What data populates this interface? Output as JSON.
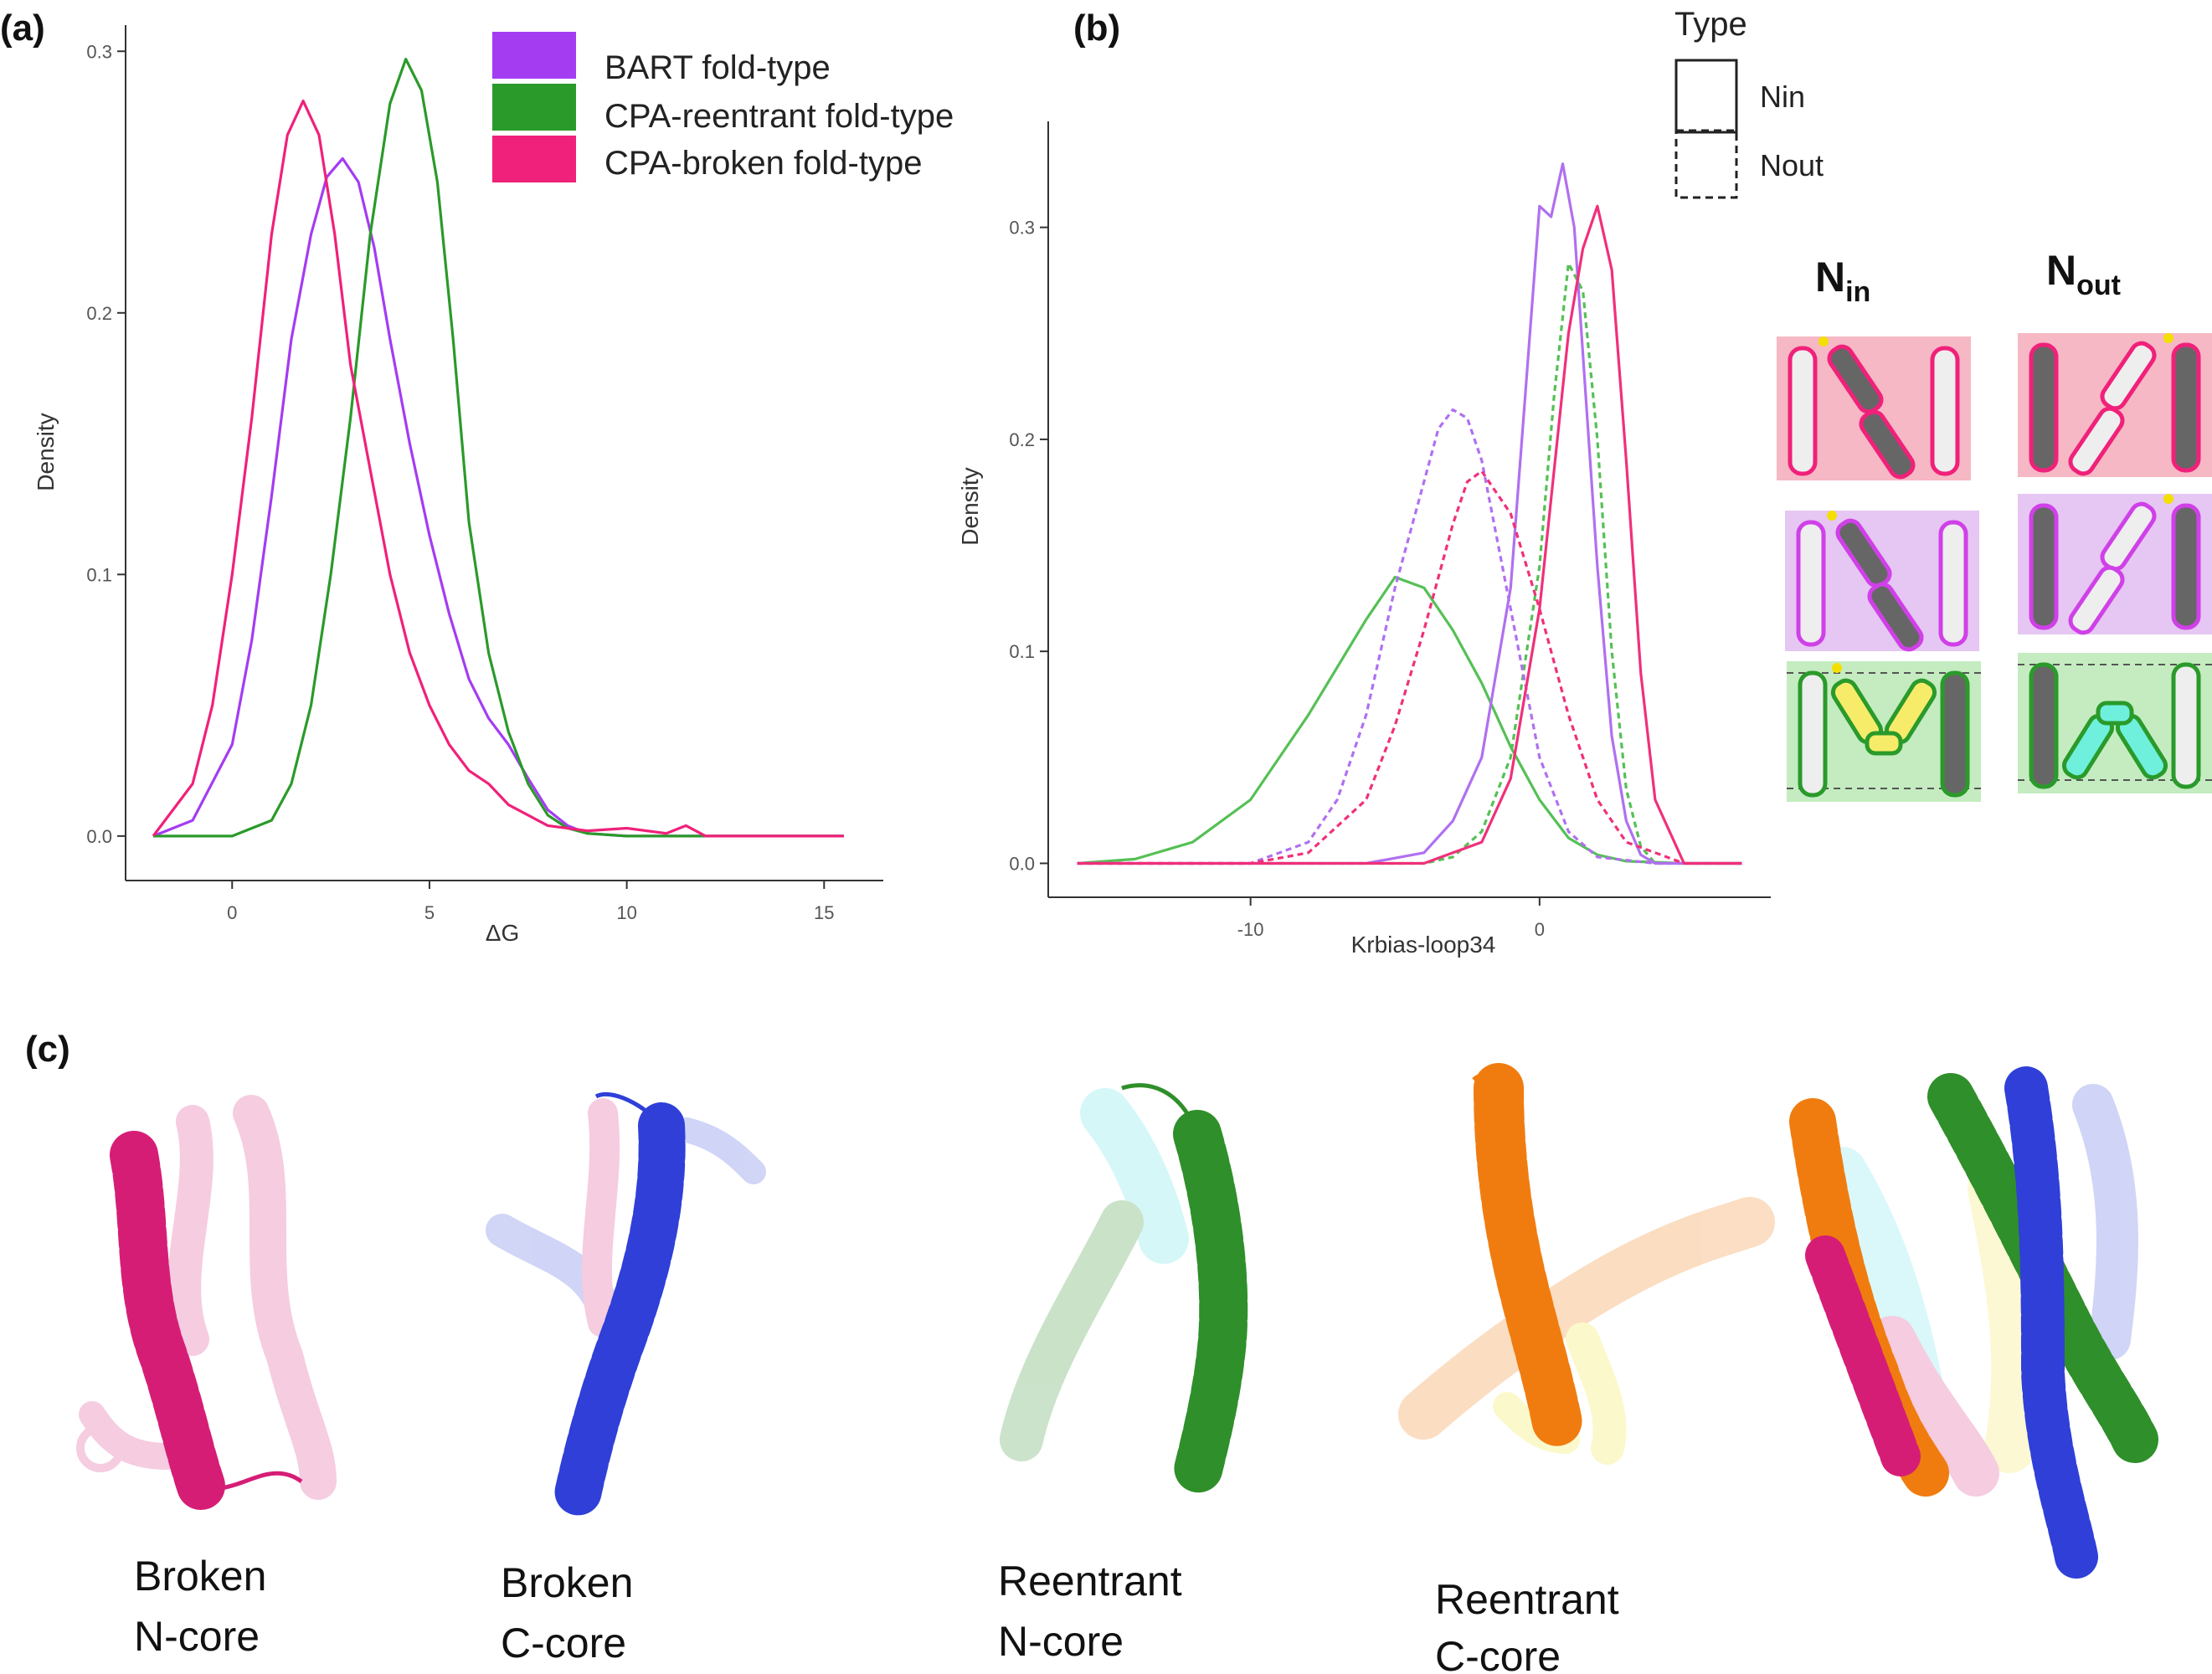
{
  "labels": {
    "panel_a": "(a)",
    "panel_b": "(b)",
    "panel_c": "(c)"
  },
  "chart_data": [
    {
      "type": "line",
      "panel": "(a)",
      "title": "",
      "xlabel": "ΔG",
      "ylabel": "Density",
      "xlim": [
        -2.7,
        16.5
      ],
      "ylim": [
        -0.017,
        0.31
      ],
      "x_ticks": [
        0,
        5,
        10,
        15
      ],
      "y_ticks": [
        0.0,
        0.1,
        0.2,
        0.3
      ],
      "x_tick_labels": [
        "0",
        "5",
        "10",
        "15"
      ],
      "y_tick_labels": [
        "0.0",
        "0.1",
        "0.2",
        "0.3"
      ],
      "grid": false,
      "legend_position": "top-right",
      "series": [
        {
          "name": "BART fold-type",
          "color": "#a43cf2",
          "x": [
            -2.0,
            -1.0,
            0.0,
            0.5,
            1.0,
            1.5,
            2.0,
            2.4,
            2.8,
            3.2,
            3.6,
            4.0,
            4.5,
            5.0,
            5.5,
            6.0,
            6.5,
            7.0,
            7.5,
            8.0,
            8.5,
            9.0,
            10.0,
            12.0,
            15.5
          ],
          "y": [
            0.0,
            0.006,
            0.035,
            0.075,
            0.13,
            0.19,
            0.23,
            0.252,
            0.259,
            0.25,
            0.225,
            0.19,
            0.15,
            0.115,
            0.085,
            0.06,
            0.045,
            0.035,
            0.022,
            0.01,
            0.004,
            0.001,
            0.0,
            0.0,
            0.0
          ]
        },
        {
          "name": "CPA-reentrant fold-type",
          "color": "#2a9a2a",
          "x": [
            -2.0,
            0.0,
            1.0,
            1.5,
            2.0,
            2.5,
            3.0,
            3.5,
            4.0,
            4.4,
            4.8,
            5.2,
            5.6,
            6.0,
            6.5,
            7.0,
            7.5,
            8.0,
            8.5,
            9.0,
            10.0,
            12.0,
            15.5
          ],
          "y": [
            0.0,
            0.0,
            0.006,
            0.02,
            0.05,
            0.1,
            0.16,
            0.23,
            0.28,
            0.297,
            0.285,
            0.25,
            0.19,
            0.12,
            0.07,
            0.04,
            0.02,
            0.008,
            0.003,
            0.001,
            0.0,
            0.0,
            0.0
          ]
        },
        {
          "name": "CPA-broken fold-type",
          "color": "#f0217a",
          "x": [
            -2.0,
            -1.0,
            -0.5,
            0.0,
            0.5,
            1.0,
            1.4,
            1.8,
            2.2,
            2.6,
            3.0,
            3.5,
            4.0,
            4.5,
            5.0,
            5.5,
            6.0,
            6.5,
            7.0,
            7.5,
            8.0,
            8.5,
            9.0,
            10.0,
            11.0,
            11.5,
            12.0,
            15.5
          ],
          "y": [
            0.0,
            0.02,
            0.05,
            0.1,
            0.16,
            0.23,
            0.268,
            0.281,
            0.268,
            0.23,
            0.18,
            0.14,
            0.1,
            0.07,
            0.05,
            0.035,
            0.025,
            0.02,
            0.012,
            0.008,
            0.004,
            0.003,
            0.002,
            0.003,
            0.001,
            0.004,
            0.0,
            0.0
          ]
        }
      ]
    },
    {
      "type": "line",
      "panel": "(b)",
      "title": "",
      "xlabel": "Krbias-loop34",
      "ylabel": "Density",
      "xlim": [
        -17,
        8
      ],
      "ylim": [
        -0.016,
        0.35
      ],
      "x_ticks": [
        -10,
        0
      ],
      "y_ticks": [
        0.0,
        0.1,
        0.2,
        0.3
      ],
      "x_tick_labels": [
        "-10",
        "0"
      ],
      "y_tick_labels": [
        "0.0",
        "0.1",
        "0.2",
        "0.3"
      ],
      "grid": false,
      "legend_position": "top-right",
      "legend_title": "Type",
      "linetype_legend": [
        {
          "name": "Nin",
          "dash": "solid"
        },
        {
          "name": "Nout",
          "dash": "dashed"
        }
      ],
      "series": [
        {
          "name": "",
          "fold": "CPA-reentrant",
          "linetype": "Nin",
          "color": "#55c055",
          "x": [
            -16,
            -14,
            -12,
            -10,
            -8,
            -6,
            -5,
            -4,
            -3,
            -2,
            -1,
            0,
            1,
            2,
            3,
            5,
            7
          ],
          "y": [
            0.0,
            0.002,
            0.01,
            0.03,
            0.07,
            0.115,
            0.135,
            0.13,
            0.11,
            0.085,
            0.055,
            0.03,
            0.012,
            0.004,
            0.001,
            0.0,
            0.0
          ]
        },
        {
          "name": "",
          "fold": "CPA-reentrant",
          "linetype": "Nout",
          "color": "#55c055",
          "x": [
            -16,
            -4,
            -3,
            -2,
            -1,
            0,
            0.5,
            1.0,
            1.5,
            2.0,
            2.5,
            3.0,
            3.5,
            4.0,
            7
          ],
          "y": [
            0.0,
            0.0,
            0.003,
            0.015,
            0.05,
            0.14,
            0.22,
            0.283,
            0.27,
            0.2,
            0.1,
            0.035,
            0.008,
            0.0,
            0.0
          ]
        },
        {
          "name": "",
          "fold": "BART",
          "linetype": "Nin",
          "color": "#b070f0",
          "x": [
            -16,
            -6,
            -4,
            -3,
            -2,
            -1,
            -0.5,
            0.0,
            0.4,
            0.8,
            1.2,
            1.6,
            2.0,
            2.5,
            3.0,
            3.5,
            4.0,
            7
          ],
          "y": [
            0.0,
            0.0,
            0.005,
            0.02,
            0.05,
            0.13,
            0.22,
            0.31,
            0.305,
            0.33,
            0.3,
            0.22,
            0.14,
            0.06,
            0.02,
            0.004,
            0.0,
            0.0
          ]
        },
        {
          "name": "",
          "fold": "BART",
          "linetype": "Nout",
          "color": "#b070f0",
          "x": [
            -16,
            -10,
            -8,
            -7,
            -6,
            -5,
            -4,
            -3.5,
            -3,
            -2.5,
            -2,
            -1,
            0,
            1,
            2,
            4,
            7
          ],
          "y": [
            0.0,
            0.0,
            0.01,
            0.03,
            0.07,
            0.13,
            0.18,
            0.205,
            0.214,
            0.21,
            0.19,
            0.12,
            0.05,
            0.015,
            0.003,
            0.0,
            0.0
          ]
        },
        {
          "name": "",
          "fold": "CPA-broken",
          "linetype": "Nin",
          "color": "#f0307a",
          "x": [
            -16,
            -4,
            -2,
            -1,
            0,
            1.0,
            1.5,
            2.0,
            2.5,
            3.0,
            3.5,
            4.0,
            5.0,
            7
          ],
          "y": [
            0.0,
            0.0,
            0.01,
            0.04,
            0.12,
            0.25,
            0.29,
            0.31,
            0.28,
            0.19,
            0.09,
            0.03,
            0.0,
            0.0
          ]
        },
        {
          "name": "",
          "fold": "CPA-broken",
          "linetype": "Nout",
          "color": "#f0307a",
          "x": [
            -16,
            -10,
            -8,
            -6,
            -5,
            -4,
            -3,
            -2.5,
            -2,
            -1,
            0,
            1,
            2,
            3,
            5,
            7
          ],
          "y": [
            0.0,
            0.0,
            0.005,
            0.03,
            0.065,
            0.11,
            0.16,
            0.18,
            0.185,
            0.165,
            0.12,
            0.07,
            0.03,
            0.01,
            0.0,
            0.0
          ]
        }
      ]
    }
  ],
  "legend_a": [
    {
      "label": "BART fold-type",
      "color": "#a43cf2"
    },
    {
      "label": "CPA-reentrant fold-type",
      "color": "#2a9a2a"
    },
    {
      "label": "CPA-broken fold-type",
      "color": "#f0217a"
    }
  ],
  "topology": {
    "nin_main": "N",
    "nin_sub": "in",
    "nout_main": "N",
    "nout_sub": "out",
    "rows": [
      {
        "fold": "CPA-broken",
        "bg": "#f6b8c4",
        "frame": "#f0217a",
        "accent": "#e8217a"
      },
      {
        "fold": "BART",
        "bg": "#e6c6f2",
        "frame": "#d040e8",
        "accent": "#cc44dd"
      },
      {
        "fold": "CPA-reentrant",
        "bg": "#c4ecc0",
        "frame": "#2a9a2a",
        "accent": "#2a9a2a"
      }
    ]
  },
  "structures": [
    {
      "line1": "Broken",
      "line2": "N-core",
      "color": "#d61d76"
    },
    {
      "line1": "Broken",
      "line2": "C-core",
      "color": "#2f3fd8"
    },
    {
      "line1": "Reentrant",
      "line2": "N-core",
      "color": "#2f8f2a"
    },
    {
      "line1": "Reentrant",
      "line2": "C-core",
      "color": "#f07c10"
    }
  ]
}
